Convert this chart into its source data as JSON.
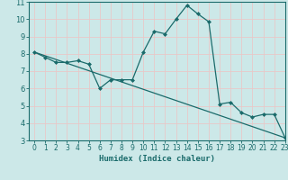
{
  "xlabel": "Humidex (Indice chaleur)",
  "bg_color": "#cce8e8",
  "line_color": "#1a6b6b",
  "grid_color": "#e8c8c8",
  "ylim": [
    3,
    11
  ],
  "xlim": [
    -0.5,
    23
  ],
  "yticks": [
    3,
    4,
    5,
    6,
    7,
    8,
    9,
    10,
    11
  ],
  "xticks": [
    0,
    1,
    2,
    3,
    4,
    5,
    6,
    7,
    8,
    9,
    10,
    11,
    12,
    13,
    14,
    15,
    16,
    17,
    18,
    19,
    20,
    21,
    22,
    23
  ],
  "line1_x": [
    0,
    1,
    2,
    3,
    4,
    5,
    6,
    7,
    8,
    9,
    10,
    11,
    12,
    13,
    14,
    15,
    16,
    17,
    18,
    19,
    20,
    21,
    22,
    23
  ],
  "line1_y": [
    8.1,
    7.8,
    7.5,
    7.5,
    7.6,
    7.4,
    6.0,
    6.5,
    6.5,
    6.5,
    8.1,
    9.3,
    9.15,
    10.0,
    10.8,
    10.3,
    9.85,
    5.1,
    5.2,
    4.6,
    4.35,
    4.5,
    4.5,
    3.15
  ],
  "line2_x": [
    0,
    23
  ],
  "line2_y": [
    8.1,
    3.15
  ]
}
